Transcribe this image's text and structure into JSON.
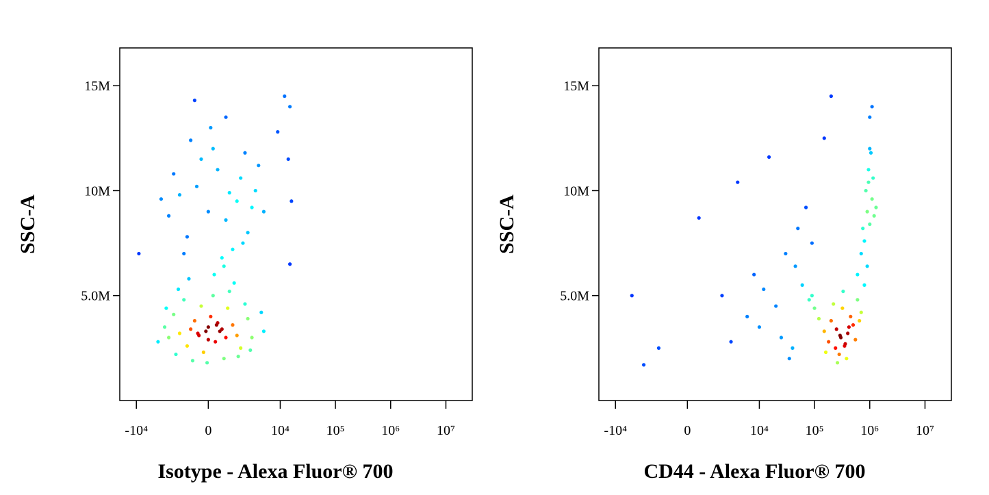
{
  "chart_data": [
    {
      "type": "scatter",
      "x_label": "Isotype - Alexa Fluor® 700",
      "y_label": "SSC-A",
      "xscale": "biexponential",
      "xlim": [
        -20000,
        30000000
      ],
      "ylim": [
        0,
        16800000
      ],
      "xticks": [
        {
          "value": -10000,
          "label": "-10⁴"
        },
        0,
        {
          "value": 10000,
          "label": "10⁴"
        },
        {
          "value": 100000,
          "label": "10⁵"
        },
        {
          "value": 1000000,
          "label": "10⁶"
        },
        {
          "value": 10000000,
          "label": "10⁷"
        }
      ],
      "yticks": [
        {
          "value": 5000000,
          "label": "5.0M"
        },
        {
          "value": 10000000,
          "label": "10M"
        },
        {
          "value": 15000000,
          "label": "15M"
        }
      ],
      "x": [
        -1500,
        0,
        800,
        -600,
        1200,
        300,
        -2000,
        1800,
        -300,
        500,
        -1000,
        2500,
        -2500,
        100,
        900,
        -800,
        1500,
        -200,
        2200,
        -1800,
        400,
        -400,
        700,
        -1200,
        1000,
        -3000,
        3000,
        200,
        -700,
        1600,
        -1600,
        2800,
        -2800,
        600,
        -100,
        0,
        350,
        -450,
        4500,
        -4000,
        1300,
        -900,
        5000,
        -50,
        250,
        0,
        800,
        1500,
        -500,
        2500,
        -1500,
        400,
        1800,
        -1000,
        3000,
        -2500,
        1200,
        200,
        -300,
        2200,
        -2000,
        600,
        3500,
        -800,
        1000,
        5000,
        -3500,
        100,
        2000,
        -1200,
        800,
        4000,
        -600,
        700,
        15000,
        12000,
        9000,
        14000,
        16000,
        15000,
        -9000
      ],
      "y": [
        3200000.0,
        3500000.0,
        3000000.0,
        3800000.0,
        3600000.0,
        2800000.0,
        4100000.0,
        2500000.0,
        4500000.0,
        3300000.0,
        2600000.0,
        3900000.0,
        3000000.0,
        4000000.0,
        4400000.0,
        3400000.0,
        3100000.0,
        2300000.0,
        4600000.0,
        2200000.0,
        3700000.0,
        3100000.0,
        2000000.0,
        4800000.0,
        5200000.0,
        3500000.0,
        3000000.0,
        5000000.0,
        1900000.0,
        2100000.0,
        5300000.0,
        2400000.0,
        4400000.0,
        3400000.0,
        3300000.0,
        2900000.0,
        3600000.0,
        3200000.0,
        4200000.0,
        2800000.0,
        5600000.0,
        5800000.0,
        3300000.0,
        1800000.0,
        6000000.0,
        9000000.0,
        8600000.0,
        9500000.0,
        10200000.0,
        8000000.0,
        9800000.0,
        11000000.0,
        10600000.0,
        7800000.0,
        9200000.0,
        8800000.0,
        7200000.0,
        12000000.0,
        11500000.0,
        11800000.0,
        10800000.0,
        6800000.0,
        10000000.0,
        12400000.0,
        9900000.0,
        9000000.0,
        9600000.0,
        13000000.0,
        7500000.0,
        7000000.0,
        13500000.0,
        11200000.0,
        14300000.0,
        6400000.0,
        14000000.0,
        14500000.0,
        12800000.0,
        11500000.0,
        9500000.0,
        6500000.0,
        7000000.0
      ]
    },
    {
      "type": "scatter",
      "x_label": "CD44 - Alexa Fluor® 700",
      "y_label": "SSC-A",
      "xscale": "biexponential",
      "xlim": [
        -20000,
        30000000
      ],
      "ylim": [
        0,
        16800000
      ],
      "xticks": [
        {
          "value": -10000,
          "label": "-10⁴"
        },
        0,
        {
          "value": 10000,
          "label": "10⁴"
        },
        {
          "value": 100000,
          "label": "10⁵"
        },
        {
          "value": 1000000,
          "label": "10⁶"
        },
        {
          "value": 10000000,
          "label": "10⁷"
        }
      ],
      "yticks": [
        {
          "value": 5000000,
          "label": "5.0M"
        },
        {
          "value": 10000000,
          "label": "10M"
        },
        {
          "value": 15000000,
          "label": "15M"
        }
      ],
      "x": [
        300000,
        250000,
        350000,
        200000,
        400000,
        280000,
        450000,
        180000,
        320000,
        500000,
        150000,
        260000,
        600000,
        380000,
        220000,
        700000,
        120000,
        330000,
        550000,
        100000,
        800000,
        240000,
        420000,
        290000,
        160000,
        650000,
        90000,
        360000,
        900000,
        1000000,
        850000,
        1100000,
        950000,
        1200000,
        800000,
        1000000,
        1150000,
        700000,
        900000,
        1050000,
        1300000,
        750000,
        1000000,
        1100000,
        600000,
        950000,
        2000,
        -5000,
        -3000,
        500,
        4000,
        8000,
        10000,
        15000,
        20000,
        30000,
        40000,
        50000,
        60000,
        3000,
        6000,
        25000,
        70000,
        45000,
        12000,
        80000,
        35000,
        90000,
        200000,
        150000,
        -1500
      ],
      "y": [
        3000000.0,
        3400000.0,
        2600000.0,
        3800000.0,
        3200000.0,
        2200000.0,
        4000000.0,
        2800000.0,
        4400000.0,
        3600000.0,
        3300000.0,
        1800000.0,
        4800000.0,
        2000000.0,
        4600000.0,
        4200000.0,
        3900000.0,
        5200000.0,
        2900000.0,
        4400000.0,
        5500000.0,
        2500000.0,
        3500000.0,
        3100000.0,
        2300000.0,
        3800000.0,
        5000000.0,
        2700000.0,
        9000000.0,
        8400000.0,
        10000000.0,
        9600000.0,
        11000000.0,
        8800000.0,
        7600000.0,
        12000000.0,
        10600000.0,
        7000000.0,
        6400000.0,
        11800000.0,
        9200000.0,
        8200000.0,
        13500000.0,
        14000000.0,
        6000000.0,
        10400000.0,
        5000000.0,
        5000000.0,
        1700000.0,
        8700000.0,
        10400000.0,
        6000000.0,
        3500000.0,
        11600000.0,
        4500000.0,
        7000000.0,
        2500000.0,
        8200000.0,
        5500000.0,
        2800000.0,
        4000000.0,
        3000000.0,
        9200000.0,
        6400000.0,
        5300000.0,
        4800000.0,
        2000000.0,
        7500000.0,
        14500000.0,
        12500000.0,
        2500000.0
      ]
    }
  ]
}
